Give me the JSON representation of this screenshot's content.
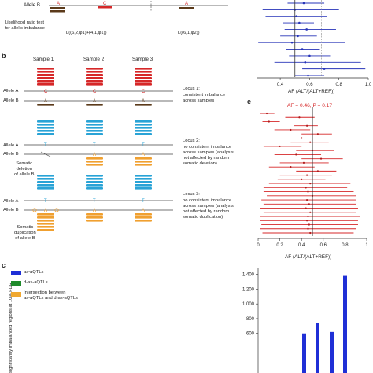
{
  "panel_a": {
    "allele_b_label": "Allele B",
    "lrt_label": "Likelihood ratio test\nfor allelic imbalance",
    "allele_letter_a": "A",
    "allele_letter_c": "C",
    "allele_letter_a2": "A",
    "formula_left": "L((6,2,φ1)+(4,1,φ1))",
    "formula_right": "L((6,1,φ2))"
  },
  "panel_b": {
    "letter": "b",
    "sample_headers": [
      "Sample 1",
      "Sample 2",
      "Sample 3"
    ],
    "row_labels": {
      "allele_a": "Allele A",
      "allele_b": "Allele B"
    },
    "loci": [
      {
        "title": "Locus 1:",
        "desc": "consistent imbalance\nacross samples"
      },
      {
        "title": "Locus 2:",
        "desc": "no consistent imbalance\nacross samples (analysis\nnot affected by random\nsomatic deletion)"
      },
      {
        "title": "Locus 3:",
        "desc": "no consistent imbalance\nacross samples (analysis\nnot affected by random\nsomatic duplication)"
      }
    ],
    "somatic_deletion": "Somatic\ndeletion\nof allele B",
    "somatic_duplication": "Somatic\nduplication\nof allele B",
    "colors": {
      "red": "#d62728",
      "brown": "#5b3a1a",
      "blue": "#29a3d6",
      "orange": "#f0a030"
    }
  },
  "panel_d_forest": {
    "x_ticks": [
      "0.4",
      "0.6",
      "0.8",
      "1.0"
    ],
    "xlabel": "AF (ALT/(ALT+REF))"
  },
  "panel_e": {
    "letter": "e",
    "annotation": "AF = 0.46, P = 0.17",
    "x_ticks": [
      "0",
      "0.2",
      "0.4",
      "0.6",
      "0.8",
      "1"
    ],
    "xlabel": "AF (ALT/(ALT+REF))"
  },
  "panel_c": {
    "letter": "c",
    "ylabel": "significantly imbalanced regions at 10% FDR",
    "legend": [
      {
        "label": "as-aQTLs",
        "color": "#1f2fd6"
      },
      {
        "label": "d-as-aQTLs",
        "color": "#1e8a2a"
      },
      {
        "label": "Intersection between\nas-aQTLs and d-as-aQTLs",
        "color": "#f0a830"
      }
    ]
  },
  "chart_data": [
    {
      "type": "scatter",
      "xlabel": "AF (ALT/(ALT+REF))",
      "x_ticks": [
        0.4,
        0.6,
        0.8,
        1.0
      ],
      "reference_lines": [
        0.5,
        0.68
      ],
      "points": [
        {
          "af": 0.56,
          "lo": 0.45,
          "hi": 0.7
        },
        {
          "af": 0.5,
          "lo": 0.28,
          "hi": 0.8
        },
        {
          "af": 0.51,
          "lo": 0.3,
          "hi": 0.72
        },
        {
          "af": 0.53,
          "lo": 0.42,
          "hi": 0.63
        },
        {
          "af": 0.58,
          "lo": 0.43,
          "hi": 0.78
        },
        {
          "af": 0.52,
          "lo": 0.4,
          "hi": 0.65
        },
        {
          "af": 0.48,
          "lo": 0.25,
          "hi": 0.84
        },
        {
          "af": 0.55,
          "lo": 0.44,
          "hi": 0.67
        },
        {
          "af": 0.6,
          "lo": 0.46,
          "hi": 0.74
        },
        {
          "af": 0.57,
          "lo": 0.36,
          "hi": 0.95
        },
        {
          "af": 0.7,
          "lo": 0.55,
          "hi": 0.98
        },
        {
          "af": 0.59,
          "lo": 0.5,
          "hi": 0.7
        }
      ]
    },
    {
      "type": "scatter",
      "title": "AF = 0.46, P = 0.17",
      "xlabel": "AF (ALT/(ALT+REF))",
      "xlim": [
        0,
        1
      ],
      "x_ticks": [
        0,
        0.2,
        0.4,
        0.6,
        0.8,
        1
      ],
      "reference_line": 0.5,
      "points": [
        {
          "af": 0.08,
          "lo": 0.02,
          "hi": 0.15
        },
        {
          "af": 0.38,
          "lo": 0.25,
          "hi": 0.52
        },
        {
          "af": 0.1,
          "lo": 0.04,
          "hi": 0.2
        },
        {
          "af": 0.45,
          "lo": 0.33,
          "hi": 0.55
        },
        {
          "af": 0.3,
          "lo": 0.15,
          "hi": 0.48
        },
        {
          "af": 0.55,
          "lo": 0.4,
          "hi": 0.68
        },
        {
          "af": 0.4,
          "lo": 0.25,
          "hi": 0.55
        },
        {
          "af": 0.48,
          "lo": 0.3,
          "hi": 0.65
        },
        {
          "af": 0.2,
          "lo": 0.05,
          "hi": 0.4
        },
        {
          "af": 0.5,
          "lo": 0.35,
          "hi": 0.7
        },
        {
          "af": 0.35,
          "lo": 0.15,
          "hi": 0.58
        },
        {
          "af": 0.58,
          "lo": 0.4,
          "hi": 0.78
        },
        {
          "af": 0.42,
          "lo": 0.2,
          "hi": 0.65
        },
        {
          "af": 0.3,
          "lo": 0.1,
          "hi": 0.52
        },
        {
          "af": 0.55,
          "lo": 0.35,
          "hi": 0.72
        },
        {
          "af": 0.45,
          "lo": 0.2,
          "hi": 0.68
        },
        {
          "af": 0.4,
          "lo": 0.18,
          "hi": 0.62
        },
        {
          "af": 0.48,
          "lo": 0.1,
          "hi": 0.85
        },
        {
          "af": 0.44,
          "lo": 0.05,
          "hi": 0.82
        },
        {
          "af": 0.46,
          "lo": 0.05,
          "hi": 0.88
        },
        {
          "af": 0.5,
          "lo": 0.08,
          "hi": 0.9
        },
        {
          "af": 0.45,
          "lo": 0.03,
          "hi": 0.9
        },
        {
          "af": 0.47,
          "lo": 0.05,
          "hi": 0.9
        },
        {
          "af": 0.44,
          "lo": 0.02,
          "hi": 0.92
        },
        {
          "af": 0.48,
          "lo": 0.05,
          "hi": 0.9
        },
        {
          "af": 0.46,
          "lo": 0.02,
          "hi": 0.94
        },
        {
          "af": 0.45,
          "lo": 0.02,
          "hi": 0.92
        },
        {
          "af": 0.47,
          "lo": 0.03,
          "hi": 0.92
        },
        {
          "af": 0.46,
          "lo": 0.02,
          "hi": 0.9
        },
        {
          "af": 0.48,
          "lo": 0.04,
          "hi": 0.88
        }
      ]
    },
    {
      "type": "bar",
      "ylabel": "significantly imbalanced regions at 10% FDR",
      "y_ticks": [
        1400,
        1200,
        1000,
        800,
        600
      ],
      "ylim": [
        0,
        1450
      ],
      "series": [
        {
          "name": "as-aQTLs",
          "values": [
            600,
            740,
            620,
            1380
          ]
        }
      ]
    }
  ]
}
